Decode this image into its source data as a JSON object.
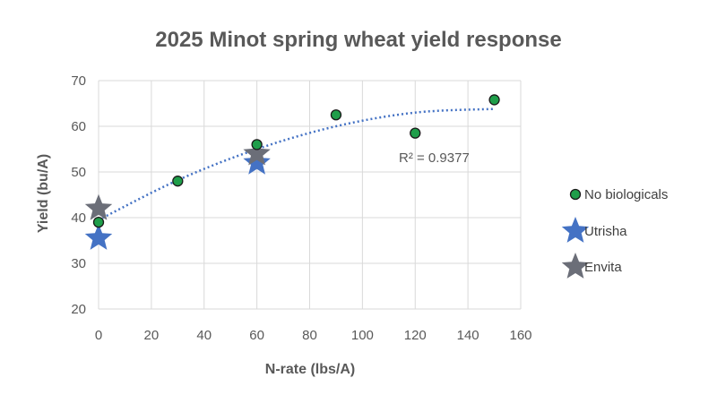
{
  "chart_data": {
    "type": "scatter",
    "title": "2025 Minot spring wheat yield response",
    "xlabel": "N-rate (lbs/A)",
    "ylabel": "Yield (bu/A)",
    "xlim": [
      0,
      160
    ],
    "ylim": [
      20,
      70
    ],
    "x_ticks": [
      "0",
      "20",
      "40",
      "60",
      "80",
      "100",
      "120",
      "140",
      "160"
    ],
    "y_ticks": [
      "20",
      "30",
      "40",
      "50",
      "60",
      "70"
    ],
    "grid": true,
    "legend_position": "right",
    "series": [
      {
        "name": "No biologicals",
        "marker": "circle",
        "color": "#1f9e4a",
        "points": [
          {
            "x": 0,
            "y": 39
          },
          {
            "x": 30,
            "y": 48
          },
          {
            "x": 60,
            "y": 56
          },
          {
            "x": 90,
            "y": 62.5
          },
          {
            "x": 120,
            "y": 58.5
          },
          {
            "x": 150,
            "y": 65.8
          }
        ]
      },
      {
        "name": "Utrisha",
        "marker": "star",
        "color": "#4472c4",
        "points": [
          {
            "x": 0,
            "y": 35.5
          },
          {
            "x": 60,
            "y": 52
          }
        ]
      },
      {
        "name": "Envita",
        "marker": "star",
        "color": "#6b6e78",
        "points": [
          {
            "x": 0,
            "y": 42
          },
          {
            "x": 60,
            "y": 54
          }
        ]
      }
    ],
    "trendline": {
      "type": "polynomial",
      "style": "dotted",
      "color": "#4472c4",
      "from_x": 0,
      "to_x": 150,
      "points": [
        {
          "x": 0,
          "y": 39.5
        },
        {
          "x": 30,
          "y": 48.2
        },
        {
          "x": 60,
          "y": 55
        },
        {
          "x": 90,
          "y": 60
        },
        {
          "x": 120,
          "y": 63
        },
        {
          "x": 150,
          "y": 63.8
        }
      ],
      "r2_label": "R² = 0.9377"
    }
  }
}
